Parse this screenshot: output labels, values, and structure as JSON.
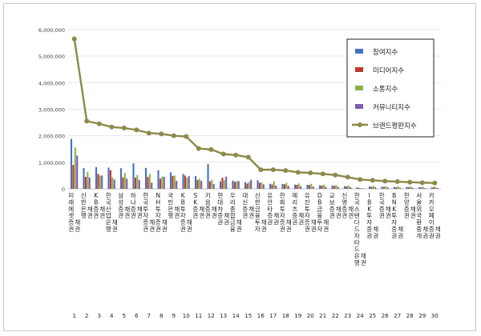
{
  "chart_data": {
    "type": "bar",
    "ylim": [
      0,
      6000000
    ],
    "yticks": [
      "0",
      "1,000,000",
      "2,000,000",
      "3,000,000",
      "4,000,000",
      "5,000,000",
      "6,000,000"
    ],
    "grid": true,
    "legend_position": "top-right",
    "categories": [
      "미래에셋증권 채권",
      "신한은행 채권",
      "KB증권 채권",
      "한국산업은행 채권",
      "삼성증권 채권",
      "하나증권 채권",
      "한국투자증권 채권",
      "NH투자증권 채권",
      "국민은행 채권",
      "KB투자증권 채권",
      "SK증권 채권",
      "키움증권 채권",
      "현대차증권 채권",
      "우리종합금융 채권",
      "대신증권 채권",
      "신한금융투자 채권",
      "유안타증권 채권",
      "한화투자증권 채권",
      "메리츠증권 채권",
      "유진투자증권 채권",
      "DB금융투자 채권",
      "교보증권 채권",
      "신영증권 채권",
      "한국스탠다드차타드은행 채권",
      "IBK투자증권 채권",
      "한국증권 채권",
      "BNK투자증권 채권",
      "한양증권 채권",
      "서울외국환중개 채권",
      "카카오페이증권 채권"
    ],
    "x_ticks": [
      "1",
      "2",
      "3",
      "4",
      "5",
      "6",
      "7",
      "8",
      "9",
      "10",
      "11",
      "12",
      "13",
      "14",
      "15",
      "16",
      "17",
      "18",
      "19",
      "20",
      "21",
      "22",
      "23",
      "24",
      "25",
      "26",
      "27",
      "28",
      "29",
      "30"
    ],
    "series": [
      {
        "name": "참여지수",
        "kind": "bar",
        "color": "#4472c4",
        "values": [
          1880000,
          780000,
          820000,
          800000,
          780000,
          960000,
          790000,
          700000,
          620000,
          560000,
          480000,
          930000,
          280000,
          310000,
          250000,
          320000,
          190000,
          180000,
          160000,
          150000,
          130000,
          120000,
          100000,
          60000,
          90000,
          80000,
          70000,
          70000,
          60000,
          50000
        ]
      },
      {
        "name": "미디어지수",
        "kind": "bar",
        "color": "#c0392b",
        "values": [
          900000,
          450000,
          560000,
          700000,
          430000,
          420000,
          450000,
          380000,
          480000,
          500000,
          330000,
          280000,
          420000,
          260000,
          200000,
          230000,
          160000,
          170000,
          150000,
          140000,
          120000,
          110000,
          90000,
          30000,
          80000,
          70000,
          60000,
          60000,
          50000,
          60000
        ]
      },
      {
        "name": "소통지수",
        "kind": "bar",
        "color": "#8bb34a",
        "values": [
          1560000,
          640000,
          500000,
          430000,
          600000,
          520000,
          560000,
          460000,
          500000,
          420000,
          380000,
          340000,
          330000,
          290000,
          260000,
          240000,
          280000,
          220000,
          200000,
          190000,
          160000,
          140000,
          120000,
          30000,
          110000,
          100000,
          90000,
          90000,
          80000,
          70000
        ]
      },
      {
        "name": "커뮤니티지수",
        "kind": "bar",
        "color": "#7a5fb0",
        "values": [
          1250000,
          430000,
          500000,
          350000,
          380000,
          330000,
          230000,
          450000,
          300000,
          480000,
          300000,
          180000,
          460000,
          290000,
          340000,
          170000,
          120000,
          110000,
          100000,
          90000,
          80000,
          70000,
          60000,
          20000,
          60000,
          50000,
          40000,
          40000,
          30000,
          30000
        ]
      },
      {
        "name": "브랜드평판지수",
        "kind": "line",
        "color": "#8c8a4a",
        "values": [
          5650000,
          2550000,
          2450000,
          2330000,
          2290000,
          2220000,
          2100000,
          2070000,
          2000000,
          1970000,
          1520000,
          1480000,
          1310000,
          1270000,
          1190000,
          720000,
          720000,
          690000,
          620000,
          600000,
          560000,
          520000,
          440000,
          350000,
          320000,
          290000,
          270000,
          250000,
          230000,
          220000
        ]
      }
    ]
  }
}
